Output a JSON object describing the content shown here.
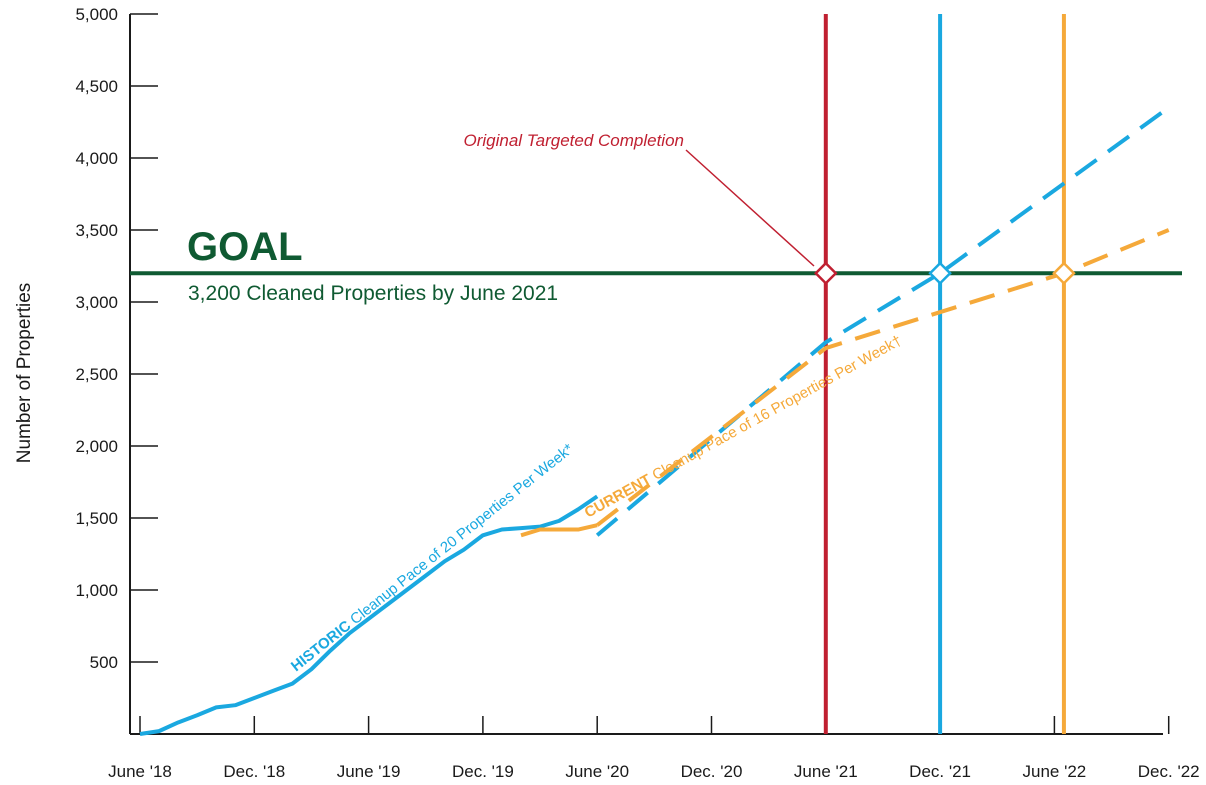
{
  "chart_data": {
    "type": "line",
    "ylabel": "Number of Properties",
    "ylim": [
      0,
      5000
    ],
    "y_ticks": [
      "500",
      "1,000",
      "1,500",
      "2,000",
      "2,500",
      "3,000",
      "3,500",
      "4,000",
      "4,500",
      "5,000"
    ],
    "x_ticks": [
      "June '18",
      "Dec. '18",
      "June '19",
      "Dec. '19",
      "June '20",
      "Dec. '20",
      "June '21",
      "Dec. '21",
      "June '22",
      "Dec. '22"
    ],
    "goal": {
      "title": "GOAL",
      "subtitle": "3,200 Cleaned Properties by June 2021",
      "value": 3200,
      "color": "#0f5a32"
    },
    "annotation": {
      "text": "Original Targeted Completion",
      "color": "#c02031"
    },
    "series": [
      {
        "label_bold": "HISTORIC",
        "label_rest": " Cleanup Pace of 20 Properties Per Week*",
        "color": "#1aa8e0",
        "style": "solid",
        "x_months": [
          0,
          1,
          2,
          3,
          4,
          5,
          6,
          7,
          8,
          9,
          10,
          11,
          12,
          13,
          14,
          15,
          16,
          17,
          18,
          19,
          20,
          21,
          22,
          23,
          24
        ],
        "values": [
          0,
          20,
          80,
          130,
          185,
          200,
          250,
          300,
          350,
          450,
          580,
          700,
          800,
          900,
          1000,
          1100,
          1200,
          1280,
          1380,
          1420,
          1430,
          1440,
          1480,
          1560,
          1650
        ]
      },
      {
        "label": "historic projection",
        "color": "#1aa8e0",
        "style": "dashed",
        "x_months": [
          24,
          36,
          42,
          54
        ],
        "values": [
          1380,
          2720,
          3200,
          4350
        ]
      },
      {
        "label_bold": "CURRENT",
        "label_rest": " Cleanup Pace of 16 Properties Per Week†",
        "color": "#f5a93a",
        "style": "solid",
        "x_months": [
          20,
          21,
          23,
          24
        ],
        "values": [
          1380,
          1420,
          1420,
          1450
        ]
      },
      {
        "label": "current projection",
        "color": "#f5a93a",
        "style": "dashed",
        "x_months": [
          24,
          36,
          48.5,
          54
        ],
        "values": [
          1450,
          2680,
          3200,
          3500
        ]
      }
    ],
    "vertical_markers": [
      {
        "name": "original-target",
        "x_month": 36,
        "color": "#c02031"
      },
      {
        "name": "historic-completion",
        "x_month": 42,
        "color": "#1aa8e0"
      },
      {
        "name": "current-completion",
        "x_month": 48.5,
        "color": "#f5a93a"
      }
    ],
    "grid": false
  }
}
